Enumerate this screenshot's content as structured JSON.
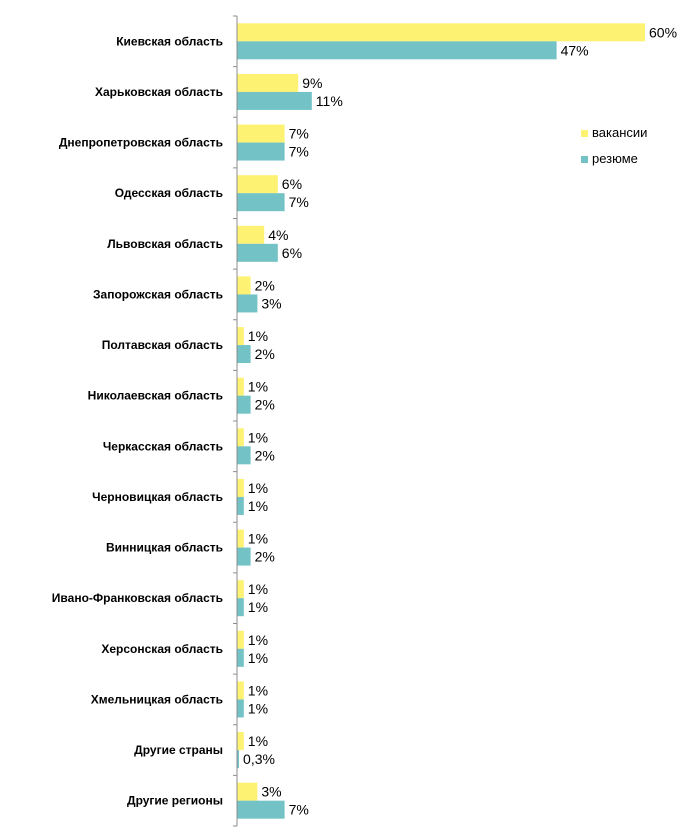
{
  "chart_data": {
    "type": "bar",
    "orientation": "horizontal",
    "categories": [
      "Киевская область",
      "Харьковская область",
      "Днепропетровская область",
      "Одесская область",
      "Львовская область",
      "Запорожская область",
      "Полтавская область",
      "Николаевская область",
      "Черкасская область",
      "Черновицкая область",
      "Винницкая область",
      "Ивано-Франковская область",
      "Херсонская область",
      "Хмельницкая область",
      "Другие страны",
      "Другие регионы"
    ],
    "series": [
      {
        "name": "вакансии",
        "color": "#fef272",
        "values": [
          60,
          9,
          7,
          6,
          4,
          2,
          1,
          1,
          1,
          1,
          1,
          1,
          1,
          1,
          1,
          3
        ],
        "labels": [
          "60%",
          "9%",
          "7%",
          "6%",
          "4%",
          "2%",
          "1%",
          "1%",
          "1%",
          "1%",
          "1%",
          "1%",
          "1%",
          "1%",
          "1%",
          "3%"
        ]
      },
      {
        "name": "резюме",
        "color": "#72c2c6",
        "values": [
          47,
          11,
          7,
          7,
          6,
          3,
          2,
          2,
          2,
          1,
          2,
          1,
          1,
          1,
          0.3,
          7
        ],
        "labels": [
          "47%",
          "11%",
          "7%",
          "7%",
          "6%",
          "3%",
          "2%",
          "2%",
          "2%",
          "1%",
          "2%",
          "1%",
          "1%",
          "1%",
          "0,3%",
          "7%"
        ]
      }
    ],
    "xlim": [
      0,
      60
    ],
    "grid": false,
    "legend_position": "right"
  }
}
